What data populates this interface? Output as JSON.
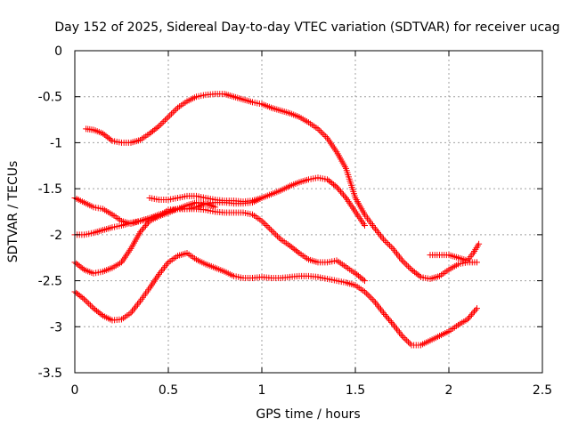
{
  "chart_data": {
    "type": "scatter",
    "title": "Day 152 of 2025, Sidereal Day-to-day VTEC variation (SDTVAR) for receiver ucag",
    "xlabel": "GPS time / hours",
    "ylabel": "SDTVAR / TECUs",
    "xlim": [
      0,
      2.5
    ],
    "ylim": [
      -3.5,
      0
    ],
    "xticks": [
      0,
      0.5,
      1,
      1.5,
      2,
      2.5
    ],
    "xtick_labels": [
      "0",
      "0.5",
      "1",
      "1.5",
      "2",
      "2.5"
    ],
    "yticks": [
      0,
      -0.5,
      -1,
      -1.5,
      -2,
      -2.5,
      -3,
      -3.5
    ],
    "ytick_labels": [
      "0",
      "-0.5",
      "-1",
      "-1.5",
      "-2",
      "-2.5",
      "-3",
      "-3.5"
    ],
    "grid": true,
    "marker": "+",
    "color": "#ff0000",
    "series": [
      {
        "name": "track-1",
        "x": [
          0.06,
          0.1,
          0.15,
          0.2,
          0.25,
          0.3,
          0.35,
          0.4,
          0.45,
          0.5,
          0.55,
          0.6,
          0.65,
          0.7,
          0.75,
          0.8,
          0.85,
          0.9,
          0.95,
          1.0,
          1.05,
          1.1,
          1.15,
          1.2,
          1.25,
          1.3,
          1.35,
          1.4,
          1.45,
          1.5,
          1.55,
          1.6,
          1.65,
          1.7,
          1.75,
          1.8,
          1.85,
          1.9,
          1.95,
          2.0,
          2.05,
          2.1,
          2.15
        ],
        "y": [
          -0.85,
          -0.86,
          -0.9,
          -0.98,
          -1.0,
          -1.0,
          -0.97,
          -0.9,
          -0.82,
          -0.72,
          -0.62,
          -0.55,
          -0.5,
          -0.48,
          -0.47,
          -0.47,
          -0.5,
          -0.53,
          -0.56,
          -0.58,
          -0.62,
          -0.65,
          -0.68,
          -0.72,
          -0.78,
          -0.85,
          -0.95,
          -1.1,
          -1.28,
          -1.6,
          -1.78,
          -1.92,
          -2.05,
          -2.15,
          -2.28,
          -2.38,
          -2.46,
          -2.48,
          -2.45,
          -2.38,
          -2.32,
          -2.3,
          -2.3
        ]
      },
      {
        "name": "track-2",
        "x": [
          0.0,
          0.05,
          0.1,
          0.15,
          0.2,
          0.25,
          0.3,
          0.35,
          0.4,
          0.45,
          0.5,
          0.55,
          0.6,
          0.65,
          0.7,
          0.75,
          0.8,
          0.85,
          0.9,
          0.95,
          1.0,
          1.05,
          1.1,
          1.15,
          1.2,
          1.25,
          1.3,
          1.35,
          1.4,
          1.45,
          1.5,
          1.55
        ],
        "y": [
          -2.0,
          -2.0,
          -1.98,
          -1.95,
          -1.92,
          -1.9,
          -1.87,
          -1.85,
          -1.82,
          -1.78,
          -1.75,
          -1.72,
          -1.72,
          -1.7,
          -1.66,
          -1.65,
          -1.65,
          -1.66,
          -1.66,
          -1.65,
          -1.6,
          -1.56,
          -1.52,
          -1.47,
          -1.43,
          -1.4,
          -1.38,
          -1.4,
          -1.48,
          -1.6,
          -1.75,
          -1.9
        ]
      },
      {
        "name": "track-3",
        "x": [
          0.0,
          0.05,
          0.1,
          0.15,
          0.2,
          0.25,
          0.3,
          0.35,
          0.4,
          0.45,
          0.5,
          0.55,
          0.6,
          0.65,
          0.7,
          0.75,
          0.8,
          0.85,
          0.9,
          0.95,
          1.0,
          1.05,
          1.1,
          1.15,
          1.2,
          1.25,
          1.3,
          1.35,
          1.4,
          1.45,
          1.5,
          1.55,
          1.6,
          1.65,
          1.7,
          1.75,
          1.8,
          1.85,
          1.9,
          1.95,
          2.0,
          2.05,
          2.1,
          2.15
        ],
        "y": [
          -2.62,
          -2.7,
          -2.8,
          -2.88,
          -2.93,
          -2.92,
          -2.85,
          -2.72,
          -2.58,
          -2.43,
          -2.3,
          -2.23,
          -2.2,
          -2.27,
          -2.32,
          -2.36,
          -2.4,
          -2.45,
          -2.47,
          -2.47,
          -2.46,
          -2.47,
          -2.47,
          -2.46,
          -2.45,
          -2.45,
          -2.46,
          -2.48,
          -2.5,
          -2.52,
          -2.55,
          -2.62,
          -2.72,
          -2.85,
          -2.97,
          -3.1,
          -3.2,
          -3.2,
          -3.15,
          -3.1,
          -3.05,
          -2.98,
          -2.92,
          -2.8
        ]
      },
      {
        "name": "track-4",
        "x": [
          0.0,
          0.05,
          0.1,
          0.15,
          0.2,
          0.25,
          0.3,
          0.35,
          0.4,
          0.45,
          0.5,
          0.55,
          0.6,
          0.65,
          0.7,
          0.75,
          0.8,
          0.85,
          0.9,
          0.95,
          1.0,
          1.05,
          1.1,
          1.15,
          1.2,
          1.25,
          1.3,
          1.35,
          1.4,
          1.45,
          1.5,
          1.55
        ],
        "y": [
          -2.3,
          -2.38,
          -2.42,
          -2.4,
          -2.36,
          -2.3,
          -2.15,
          -1.97,
          -1.85,
          -1.8,
          -1.73,
          -1.72,
          -1.72,
          -1.72,
          -1.73,
          -1.75,
          -1.76,
          -1.76,
          -1.76,
          -1.78,
          -1.85,
          -1.95,
          -2.05,
          -2.12,
          -2.2,
          -2.27,
          -2.3,
          -2.3,
          -2.28,
          -2.35,
          -2.42,
          -2.5
        ]
      },
      {
        "name": "track-5",
        "x": [
          0.0,
          0.05,
          0.1,
          0.15,
          0.2,
          0.25,
          0.3,
          0.35,
          0.4,
          0.45,
          0.5,
          0.55,
          0.6,
          0.65,
          0.7,
          0.75
        ],
        "y": [
          -1.6,
          -1.65,
          -1.7,
          -1.72,
          -1.78,
          -1.85,
          -1.88,
          -1.85,
          -1.82,
          -1.8,
          -1.76,
          -1.72,
          -1.68,
          -1.65,
          -1.66,
          -1.7
        ]
      },
      {
        "name": "track-6",
        "x": [
          0.4,
          0.45,
          0.5,
          0.55,
          0.6,
          0.65,
          0.7,
          0.75,
          0.8,
          0.85,
          0.9,
          0.95,
          1.0
        ],
        "y": [
          -1.6,
          -1.62,
          -1.62,
          -1.6,
          -1.58,
          -1.58,
          -1.6,
          -1.62,
          -1.63,
          -1.63,
          -1.64,
          -1.63,
          -1.6
        ]
      },
      {
        "name": "track-7",
        "x": [
          1.9,
          1.95,
          2.0,
          2.05,
          2.1,
          2.13,
          2.16
        ],
        "y": [
          -2.22,
          -2.22,
          -2.22,
          -2.25,
          -2.28,
          -2.2,
          -2.1
        ]
      }
    ]
  }
}
